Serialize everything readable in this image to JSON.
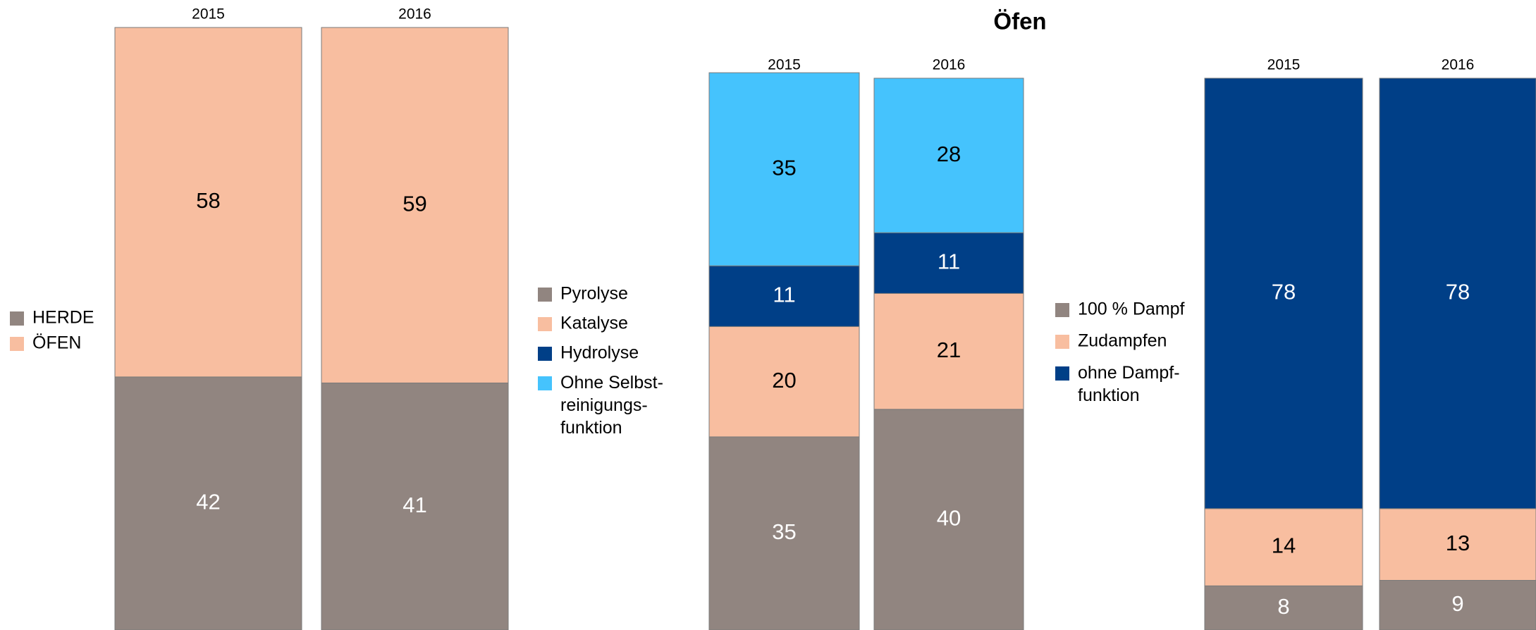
{
  "chart_data": [
    {
      "type": "stacked_bar",
      "categories": [
        "2015",
        "2016"
      ],
      "ylim": [
        0,
        100
      ],
      "series": [
        {
          "name": "HERDE",
          "color": "#918580",
          "values": [
            42,
            41
          ]
        },
        {
          "name": "ÖFEN",
          "color": "#f8bea0",
          "values": [
            58,
            59
          ]
        }
      ]
    },
    {
      "type": "stacked_bar",
      "title": "Öfen",
      "categories": [
        "2015",
        "2016"
      ],
      "ylim": [
        0,
        100
      ],
      "series": [
        {
          "name": "Pyrolyse",
          "color": "#918580",
          "values": [
            35,
            40
          ]
        },
        {
          "name": "Katalyse",
          "color": "#f8bea0",
          "values": [
            20,
            21
          ]
        },
        {
          "name": "Hydrolyse",
          "color": "#003f87",
          "values": [
            11,
            11
          ]
        },
        {
          "name": "Ohne Selbst-\nreinigungs-\nfunktion",
          "color": "#45c3fd",
          "values": [
            35,
            28
          ]
        }
      ]
    },
    {
      "type": "stacked_bar",
      "categories": [
        "2015",
        "2016"
      ],
      "ylim": [
        0,
        100
      ],
      "series": [
        {
          "name": "100 % Dampf",
          "color": "#918580",
          "values": [
            8,
            9
          ]
        },
        {
          "name": "Zudampfen",
          "color": "#f8bea0",
          "values": [
            14,
            13
          ]
        },
        {
          "name": "ohne Dampf-\nfunktion",
          "color": "#003f87",
          "values": [
            78,
            78
          ]
        }
      ]
    }
  ]
}
